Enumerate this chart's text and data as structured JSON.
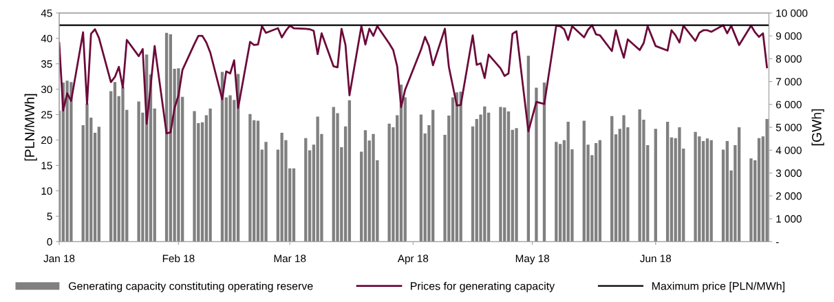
{
  "chart_data": {
    "type": "bar",
    "ylabel": "[PLN/MWh]",
    "y2label": "[GWh]",
    "x": [
      "2018-01-02",
      "2018-01-03",
      "2018-01-04",
      "2018-01-05",
      "2018-01-08",
      "2018-01-09",
      "2018-01-10",
      "2018-01-11",
      "2018-01-12",
      "2018-01-15",
      "2018-01-16",
      "2018-01-17",
      "2018-01-18",
      "2018-01-19",
      "2018-01-22",
      "2018-01-23",
      "2018-01-24",
      "2018-01-25",
      "2018-01-26",
      "2018-01-29",
      "2018-01-30",
      "2018-01-31",
      "2018-02-01",
      "2018-02-02",
      "2018-02-05",
      "2018-02-06",
      "2018-02-07",
      "2018-02-08",
      "2018-02-09",
      "2018-02-12",
      "2018-02-13",
      "2018-02-14",
      "2018-02-15",
      "2018-02-16",
      "2018-02-19",
      "2018-02-20",
      "2018-02-21",
      "2018-02-22",
      "2018-02-23",
      "2018-02-26",
      "2018-02-27",
      "2018-02-28",
      "2018-03-01",
      "2018-03-02",
      "2018-03-05",
      "2018-03-06",
      "2018-03-07",
      "2018-03-08",
      "2018-03-09",
      "2018-03-12",
      "2018-03-13",
      "2018-03-14",
      "2018-03-15",
      "2018-03-16",
      "2018-03-19",
      "2018-03-20",
      "2018-03-21",
      "2018-03-22",
      "2018-03-23",
      "2018-03-26",
      "2018-03-27",
      "2018-03-28",
      "2018-03-29",
      "2018-03-30",
      "2018-04-03",
      "2018-04-04",
      "2018-04-05",
      "2018-04-06",
      "2018-04-09",
      "2018-04-10",
      "2018-04-11",
      "2018-04-12",
      "2018-04-13",
      "2018-04-16",
      "2018-04-17",
      "2018-04-18",
      "2018-04-19",
      "2018-04-20",
      "2018-04-23",
      "2018-04-24",
      "2018-04-25",
      "2018-04-26",
      "2018-04-27",
      "2018-04-30",
      "2018-05-02",
      "2018-05-04",
      "2018-05-07",
      "2018-05-08",
      "2018-05-09",
      "2018-05-10",
      "2018-05-11",
      "2018-05-14",
      "2018-05-15",
      "2018-05-16",
      "2018-05-17",
      "2018-05-18",
      "2018-05-21",
      "2018-05-22",
      "2018-05-23",
      "2018-05-24",
      "2018-05-25",
      "2018-05-28",
      "2018-05-29",
      "2018-05-30",
      "2018-06-01",
      "2018-06-04",
      "2018-06-05",
      "2018-06-06",
      "2018-06-07",
      "2018-06-08",
      "2018-06-11",
      "2018-06-12",
      "2018-06-13",
      "2018-06-14",
      "2018-06-15",
      "2018-06-18",
      "2018-06-19",
      "2018-06-20",
      "2018-06-21",
      "2018-06-22",
      "2018-06-25",
      "2018-06-26",
      "2018-06-27",
      "2018-06-28",
      "2018-06-29"
    ],
    "series": [
      {
        "name": "Generating capacity constituting operating reserve",
        "axis": "y2",
        "color": "#808080",
        "values": [
          5730,
          6960,
          7040,
          6980,
          5090,
          6040,
          5420,
          4760,
          5020,
          6580,
          6980,
          6360,
          6760,
          5760,
          6130,
          5640,
          8180,
          7310,
          5820,
          9130,
          9070,
          7560,
          7580,
          6330,
          5710,
          5180,
          5220,
          5530,
          5820,
          7420,
          6310,
          6400,
          6200,
          7330,
          5580,
          5310,
          5290,
          4020,
          4360,
          4020,
          4760,
          4440,
          3200,
          3200,
          4530,
          3990,
          4240,
          5470,
          4710,
          5890,
          5620,
          4130,
          5040,
          6180,
          3930,
          4870,
          4420,
          4710,
          3560,
          5160,
          5000,
          5530,
          6870,
          6310,
          5560,
          4730,
          5090,
          5760,
          4670,
          5510,
          6310,
          6530,
          6560,
          5040,
          5360,
          5560,
          5910,
          5640,
          5890,
          5870,
          5690,
          4890,
          4960,
          8130,
          6730,
          6960,
          4360,
          4270,
          4440,
          5240,
          4040,
          5290,
          4240,
          3780,
          4310,
          4440,
          5490,
          4690,
          4930,
          5530,
          5000,
          5780,
          5330,
          4220,
          4930,
          5240,
          4560,
          4530,
          5000,
          4070,
          4800,
          4600,
          4400,
          4510,
          4440,
          4020,
          4400,
          3110,
          4220,
          5000,
          3640,
          3560,
          4530,
          4600,
          5360
        ]
      },
      {
        "name": "Prices for generating capacity",
        "type": "line",
        "color": "#6b0a3a",
        "values": [
          39.1,
          25.8,
          29.2,
          27.7,
          41.2,
          27.1,
          40.9,
          41.8,
          40.1,
          31.4,
          32.4,
          34.4,
          30.3,
          39.7,
          36.5,
          37.9,
          23.2,
          30.7,
          38.5,
          21.3,
          21.5,
          26.3,
          28.8,
          33.8,
          38.9,
          40.5,
          40.5,
          39.2,
          37.2,
          28.0,
          33.5,
          33.1,
          35.7,
          26.3,
          39.3,
          38.7,
          38.8,
          42.4,
          41.1,
          42.0,
          40.2,
          41.5,
          42.5,
          42.0,
          41.9,
          41.8,
          41.5,
          36.9,
          41.0,
          34.5,
          34.3,
          41.9,
          38.7,
          28.8,
          42.4,
          38.8,
          41.9,
          40.5,
          42.4,
          39.0,
          37.7,
          34.5,
          26.5,
          29.9,
          37.8,
          40.3,
          38.5,
          34.7,
          41.9,
          34.4,
          30.6,
          26.8,
          26.9,
          40.6,
          34.8,
          35.1,
          32.2,
          36.8,
          34.1,
          32.6,
          33.1,
          40.9,
          41.4,
          21.7,
          27.5,
          27.1,
          42.5,
          42.4,
          41.8,
          39.7,
          42.4,
          40.2,
          41.7,
          42.6,
          40.8,
          40.6,
          37.5,
          41.6,
          38.7,
          36.2,
          39.8,
          37.7,
          39.1,
          42.4,
          38.5,
          37.6,
          41.6,
          40.6,
          39.2,
          42.5,
          39.5,
          41.1,
          41.6,
          41.6,
          41.3,
          42.6,
          41.0,
          42.5,
          40.6,
          38.7,
          42.5,
          41.2,
          40.3,
          41.0,
          34.3
        ]
      }
    ],
    "ref_lines": [
      {
        "axis": "y",
        "value": 42.6,
        "label": "Maximum price [PLN/MWh]",
        "color": "#000000"
      }
    ],
    "xlim": [
      "2018-01-02",
      "2018-06-29T12:00"
    ],
    "xticks": [
      {
        "value": "2018-01-02",
        "label": "Jan 18"
      },
      {
        "value": "2018-02-01",
        "label": "Feb 18"
      },
      {
        "value": "2018-03-01",
        "label": "Mar 18"
      },
      {
        "value": "2018-04-01",
        "label": "Apr 18"
      },
      {
        "value": "2018-05-01",
        "label": "May 18"
      },
      {
        "value": "2018-06-01",
        "label": "Jun 18"
      }
    ],
    "ylim": [
      0,
      45
    ],
    "yticks": [
      0,
      5,
      10,
      15,
      20,
      25,
      30,
      35,
      40,
      45
    ],
    "y2lim": [
      0,
      10000
    ],
    "y2ticks": [
      {
        "value": 0,
        "label": "-"
      },
      {
        "value": 1000,
        "label": "1 000"
      },
      {
        "value": 2000,
        "label": "2 000"
      },
      {
        "value": 3000,
        "label": "3 000"
      },
      {
        "value": 4000,
        "label": "4 000"
      },
      {
        "value": 5000,
        "label": "5 000"
      },
      {
        "value": 6000,
        "label": "6 000"
      },
      {
        "value": 7000,
        "label": "7 000"
      },
      {
        "value": 8000,
        "label": "8 000"
      },
      {
        "value": 9000,
        "label": "9 000"
      },
      {
        "value": 10000,
        "label": "10 000"
      }
    ],
    "grid": false,
    "legend": "bottom"
  }
}
